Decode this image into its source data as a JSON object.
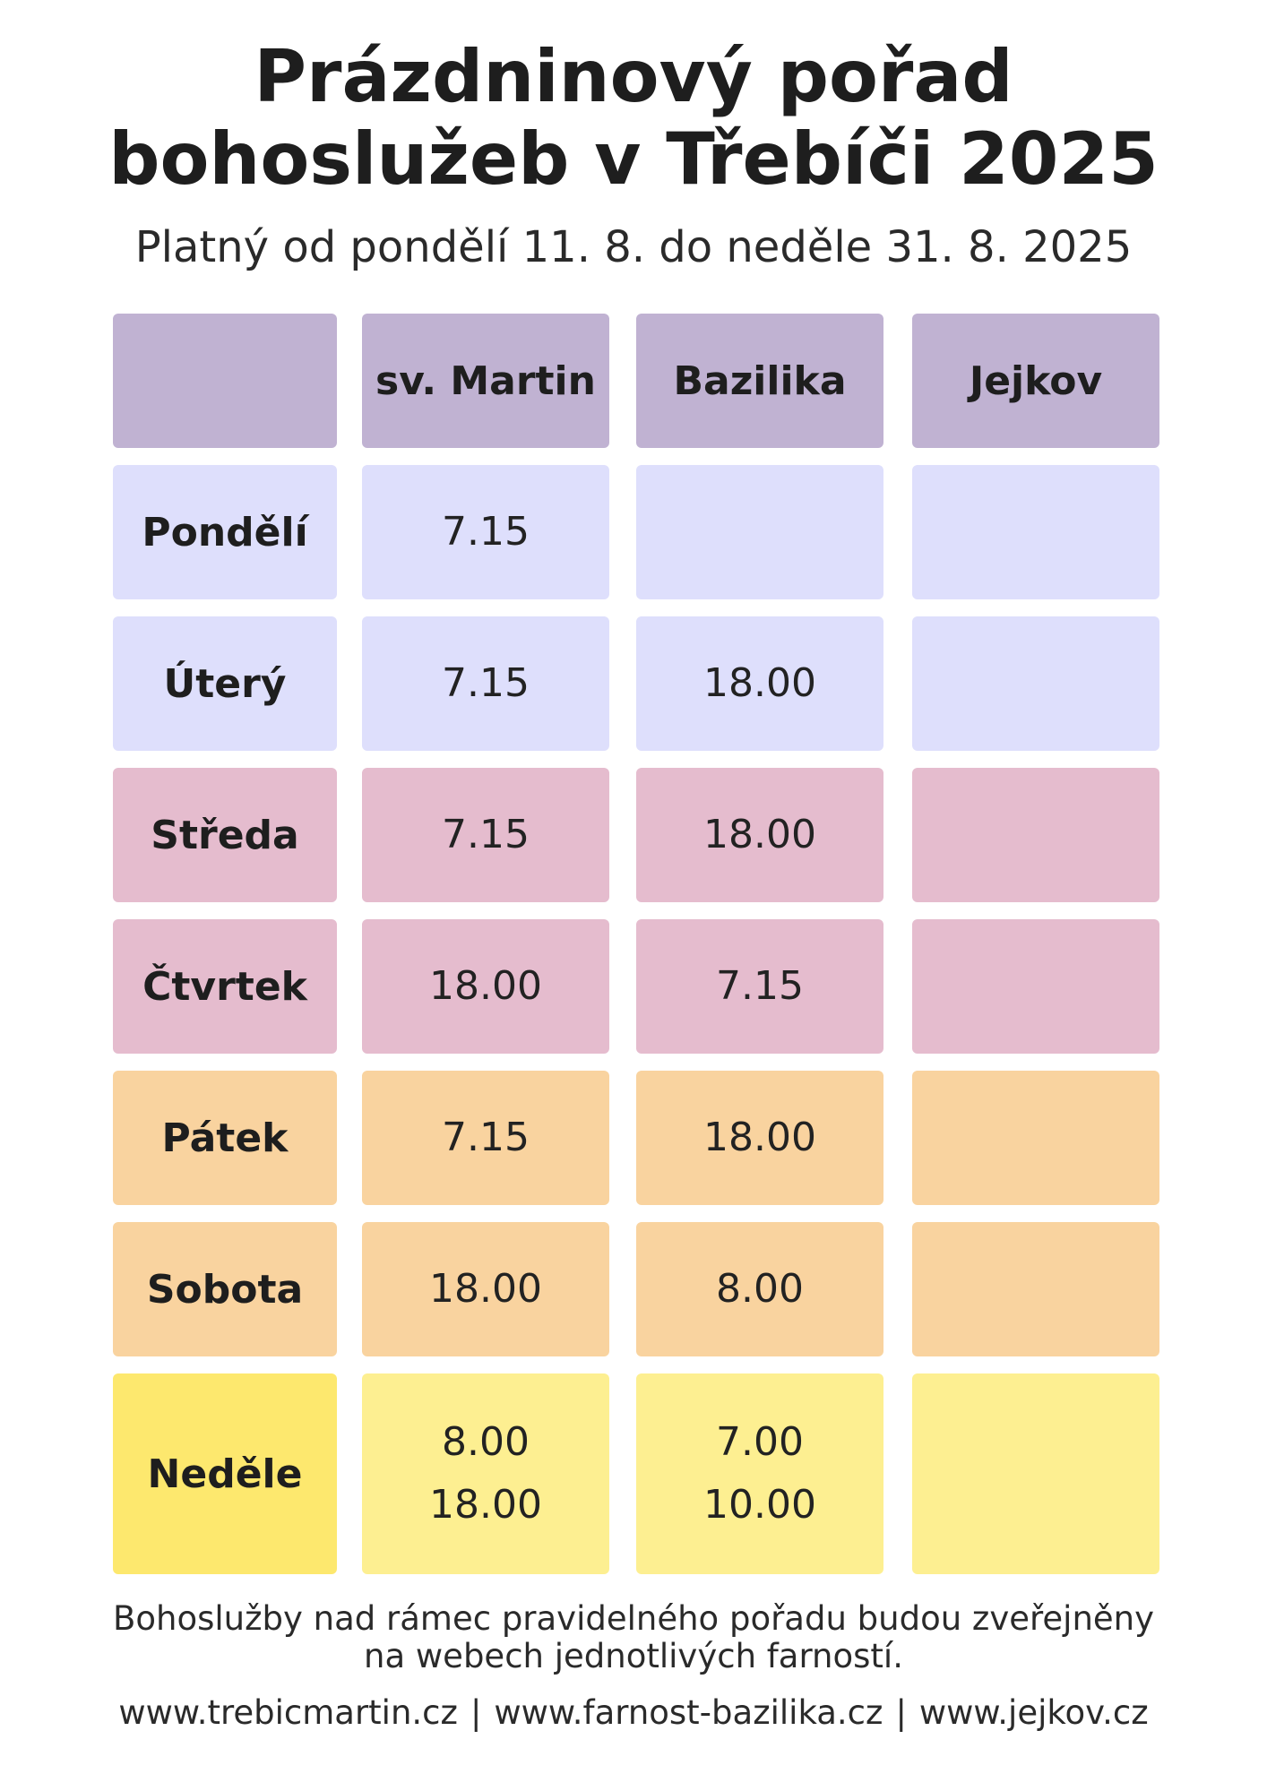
{
  "title": {
    "line1": "Prázdninový pořad",
    "line2": "bohoslužeb v Třebíči 2025"
  },
  "subtitle": "Platný od pondělí 11. 8. do neděle 31. 8. 2025",
  "table": {
    "headers": [
      "",
      "sv. Martin",
      "Bazilika",
      "Jejkov"
    ],
    "header_color": "#c0b2d2",
    "rows": [
      {
        "day": "Pondělí",
        "sv_martin": [
          "7.15"
        ],
        "bazilika": [],
        "jejkov": [],
        "color": "#dedffc"
      },
      {
        "day": "Úterý",
        "sv_martin": [
          "7.15"
        ],
        "bazilika": [
          "18.00"
        ],
        "jejkov": [],
        "color": "#dedffc"
      },
      {
        "day": "Středa",
        "sv_martin": [
          "7.15"
        ],
        "bazilika": [
          "18.00"
        ],
        "jejkov": [],
        "color": "#e5bcce"
      },
      {
        "day": "Čtvrtek",
        "sv_martin": [
          "18.00"
        ],
        "bazilika": [
          "7.15"
        ],
        "jejkov": [],
        "color": "#e5bcce"
      },
      {
        "day": "Pátek",
        "sv_martin": [
          "7.15"
        ],
        "bazilika": [
          "18.00"
        ],
        "jejkov": [],
        "color": "#f9d39f"
      },
      {
        "day": "Sobota",
        "sv_martin": [
          "18.00"
        ],
        "bazilika": [
          "8.00"
        ],
        "jejkov": [],
        "color": "#f9d39f"
      },
      {
        "day": "Neděle",
        "sv_martin": [
          "8.00",
          "18.00"
        ],
        "bazilika": [
          "7.00",
          "10.00"
        ],
        "jejkov": [],
        "color": "#fdef91",
        "day_color": "#fde86e"
      }
    ]
  },
  "footer": {
    "note_line1": "Bohoslužby nad rámec pravidelného pořadu budou zveřejněny",
    "note_line2": "na webech jednotlivých farností.",
    "links": [
      "www.trebicmartin.cz",
      "www.farnost-bazilika.cz",
      "www.jejkov.cz"
    ],
    "separator": "|"
  }
}
